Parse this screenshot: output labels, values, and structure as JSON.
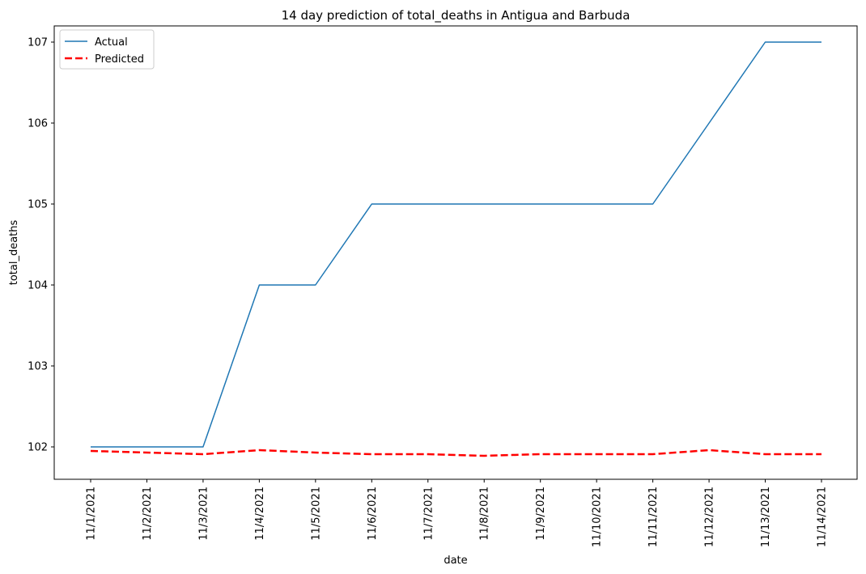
{
  "chart_data": {
    "type": "line",
    "title": "14 day prediction of total_deaths in Antigua and Barbuda",
    "xlabel": "date",
    "ylabel": "total_deaths",
    "categories": [
      "11/1/2021",
      "11/2/2021",
      "11/3/2021",
      "11/4/2021",
      "11/5/2021",
      "11/6/2021",
      "11/7/2021",
      "11/8/2021",
      "11/9/2021",
      "11/10/2021",
      "11/11/2021",
      "11/12/2021",
      "11/13/2021",
      "11/14/2021"
    ],
    "yticks": [
      "102",
      "103",
      "104",
      "105",
      "106",
      "107"
    ],
    "ylim": [
      101.6,
      107.2
    ],
    "grid": false,
    "legend_position": "top-left",
    "series": [
      {
        "name": "Actual",
        "style": "solid",
        "color": "#1f77b4",
        "values": [
          102,
          102,
          102,
          104,
          104,
          105,
          105,
          105,
          105,
          105,
          105,
          106,
          107,
          107
        ]
      },
      {
        "name": "Predicted",
        "style": "dashed",
        "color": "#ff0000",
        "values": [
          101.95,
          101.93,
          101.91,
          101.96,
          101.93,
          101.91,
          101.91,
          101.89,
          101.91,
          101.91,
          101.91,
          101.96,
          101.91,
          101.91
        ]
      }
    ]
  }
}
